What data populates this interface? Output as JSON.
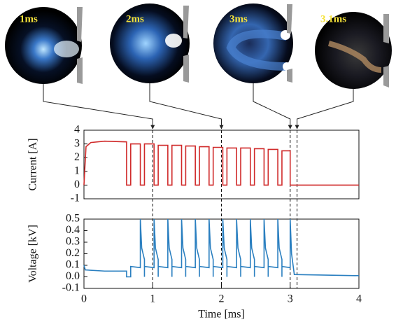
{
  "photos": [
    {
      "label": "1ms",
      "time": 1
    },
    {
      "label": "2ms",
      "time": 2
    },
    {
      "label": "3ms",
      "time": 3
    },
    {
      "label": "3.1ms",
      "time": 3.1
    }
  ],
  "chart_data": [
    {
      "type": "line",
      "ylabel": "Current [A]",
      "color": "#d02a2a",
      "xlim": [
        0,
        4
      ],
      "ylim": [
        -1,
        4
      ],
      "yticks": [
        4,
        3,
        2,
        1,
        0,
        -1
      ],
      "x": [
        0,
        0.03,
        0.1,
        0.3,
        0.62,
        0.62,
        0.68,
        0.68,
        0.82,
        0.82,
        0.88,
        0.88,
        1.02,
        1.02,
        1.08,
        1.08,
        1.22,
        1.22,
        1.28,
        1.28,
        1.42,
        1.42,
        1.48,
        1.48,
        1.62,
        1.62,
        1.68,
        1.68,
        1.82,
        1.82,
        1.88,
        1.88,
        2.02,
        2.02,
        2.08,
        2.08,
        2.22,
        2.22,
        2.28,
        2.28,
        2.42,
        2.42,
        2.48,
        2.48,
        2.62,
        2.62,
        2.68,
        2.68,
        2.82,
        2.82,
        2.88,
        2.88,
        3.0,
        3.0,
        4
      ],
      "values": [
        0,
        2.8,
        3.1,
        3.2,
        3.15,
        0,
        0,
        3.0,
        3.0,
        0,
        0,
        3.0,
        3.0,
        0,
        0,
        2.9,
        2.9,
        0,
        0,
        2.9,
        2.9,
        0,
        0,
        2.85,
        2.85,
        0,
        0,
        2.8,
        2.8,
        0,
        0,
        2.75,
        2.75,
        0,
        0,
        2.7,
        2.7,
        0,
        0,
        2.7,
        2.7,
        0,
        0,
        2.65,
        2.65,
        0,
        0,
        2.6,
        2.6,
        0,
        0,
        2.5,
        2.5,
        0,
        0
      ]
    },
    {
      "type": "line",
      "ylabel": "Voltage  [kV]",
      "xlabel": "Time [ms]",
      "color": "#2a7fc0",
      "xlim": [
        0,
        4
      ],
      "xticks": [
        0,
        1,
        2,
        3,
        4
      ],
      "ylim": [
        -0.1,
        0.5
      ],
      "yticks": [
        0.5,
        0.4,
        0.3,
        0.2,
        0.1,
        {
          "value": 0,
          "label": "0.0"
        },
        -0.1
      ],
      "x": [
        0,
        0.02,
        0.3,
        0.62,
        0.62,
        0.68,
        0.68,
        0.82,
        0.82,
        0.84,
        0.88,
        0.88,
        0.88,
        1.02,
        1.02,
        1.04,
        1.08,
        1.08,
        1.08,
        1.22,
        1.22,
        1.24,
        1.28,
        1.28,
        1.28,
        1.42,
        1.42,
        1.44,
        1.48,
        1.48,
        1.48,
        1.62,
        1.62,
        1.64,
        1.68,
        1.68,
        1.68,
        1.82,
        1.82,
        1.84,
        1.88,
        1.88,
        1.88,
        2.02,
        2.02,
        2.04,
        2.08,
        2.08,
        2.08,
        2.22,
        2.22,
        2.24,
        2.28,
        2.28,
        2.28,
        2.42,
        2.42,
        2.44,
        2.48,
        2.48,
        2.48,
        2.62,
        2.62,
        2.64,
        2.68,
        2.68,
        2.68,
        2.82,
        2.82,
        2.84,
        2.88,
        2.88,
        2.88,
        3.0,
        3.0,
        3.02,
        3.06,
        4
      ],
      "values": [
        0.1,
        0.06,
        0.05,
        0.05,
        0,
        0,
        0.09,
        0.08,
        0.5,
        0.25,
        0.15,
        0,
        0.09,
        0.08,
        0.5,
        0.25,
        0.15,
        0,
        0.09,
        0.08,
        0.5,
        0.25,
        0.15,
        0,
        0.09,
        0.08,
        0.5,
        0.25,
        0.15,
        0,
        0.09,
        0.08,
        0.5,
        0.25,
        0.15,
        0,
        0.09,
        0.08,
        0.5,
        0.25,
        0.15,
        0,
        0.09,
        0.08,
        0.5,
        0.25,
        0.15,
        0,
        0.09,
        0.08,
        0.5,
        0.25,
        0.15,
        0,
        0.09,
        0.08,
        0.5,
        0.25,
        0.15,
        0,
        0.09,
        0.08,
        0.5,
        0.25,
        0.15,
        0,
        0.09,
        0.08,
        0.5,
        0.25,
        0.15,
        0,
        0.09,
        0.08,
        0.5,
        0.2,
        0.02,
        0.01
      ]
    }
  ]
}
